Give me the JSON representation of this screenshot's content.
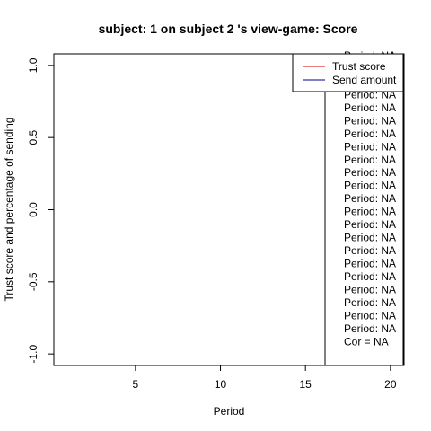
{
  "chart_data": {
    "type": "line",
    "title": "subject:  1  on subject  2 's view-game:  Score",
    "xlabel": "Period",
    "ylabel": "Trust score and percentage of sending",
    "xlim": [
      0.2,
      20.8
    ],
    "ylim": [
      -1.08,
      1.08
    ],
    "x_ticks": [
      5,
      10,
      15,
      20
    ],
    "y_ticks": [
      -1.0,
      -0.5,
      0.0,
      0.5,
      1.0
    ],
    "y_tick_labels": [
      "-1.0",
      "-0.5",
      "0.0",
      "0.5",
      "1.0"
    ],
    "legend": {
      "placement": "top-right",
      "entries": [
        {
          "label": "Trust score",
          "color": "#cc0000"
        },
        {
          "label": "Send amount",
          "color": "#00008b"
        }
      ]
    },
    "series": [
      {
        "name": "Trust score",
        "color": "#cc0000",
        "values": []
      },
      {
        "name": "Send amount",
        "color": "#00008b",
        "values": []
      }
    ],
    "period_annotations": [
      "Period:  NA",
      "Period:  NA",
      "Period:  NA",
      "Period:  NA",
      "Period:  NA",
      "Period:  NA",
      "Period:  NA",
      "Period:  NA",
      "Period:  NA",
      "Period:  NA",
      "Period:  NA",
      "Period:  NA",
      "Period:  NA",
      "Period:  NA",
      "Period:  NA",
      "Period:  NA",
      "Period:  NA",
      "Period:  NA",
      "Period:  NA",
      "Period:  NA",
      "Period:  NA",
      "Period:  NA"
    ],
    "cor_text": "Cor =  NA",
    "grid": false
  }
}
